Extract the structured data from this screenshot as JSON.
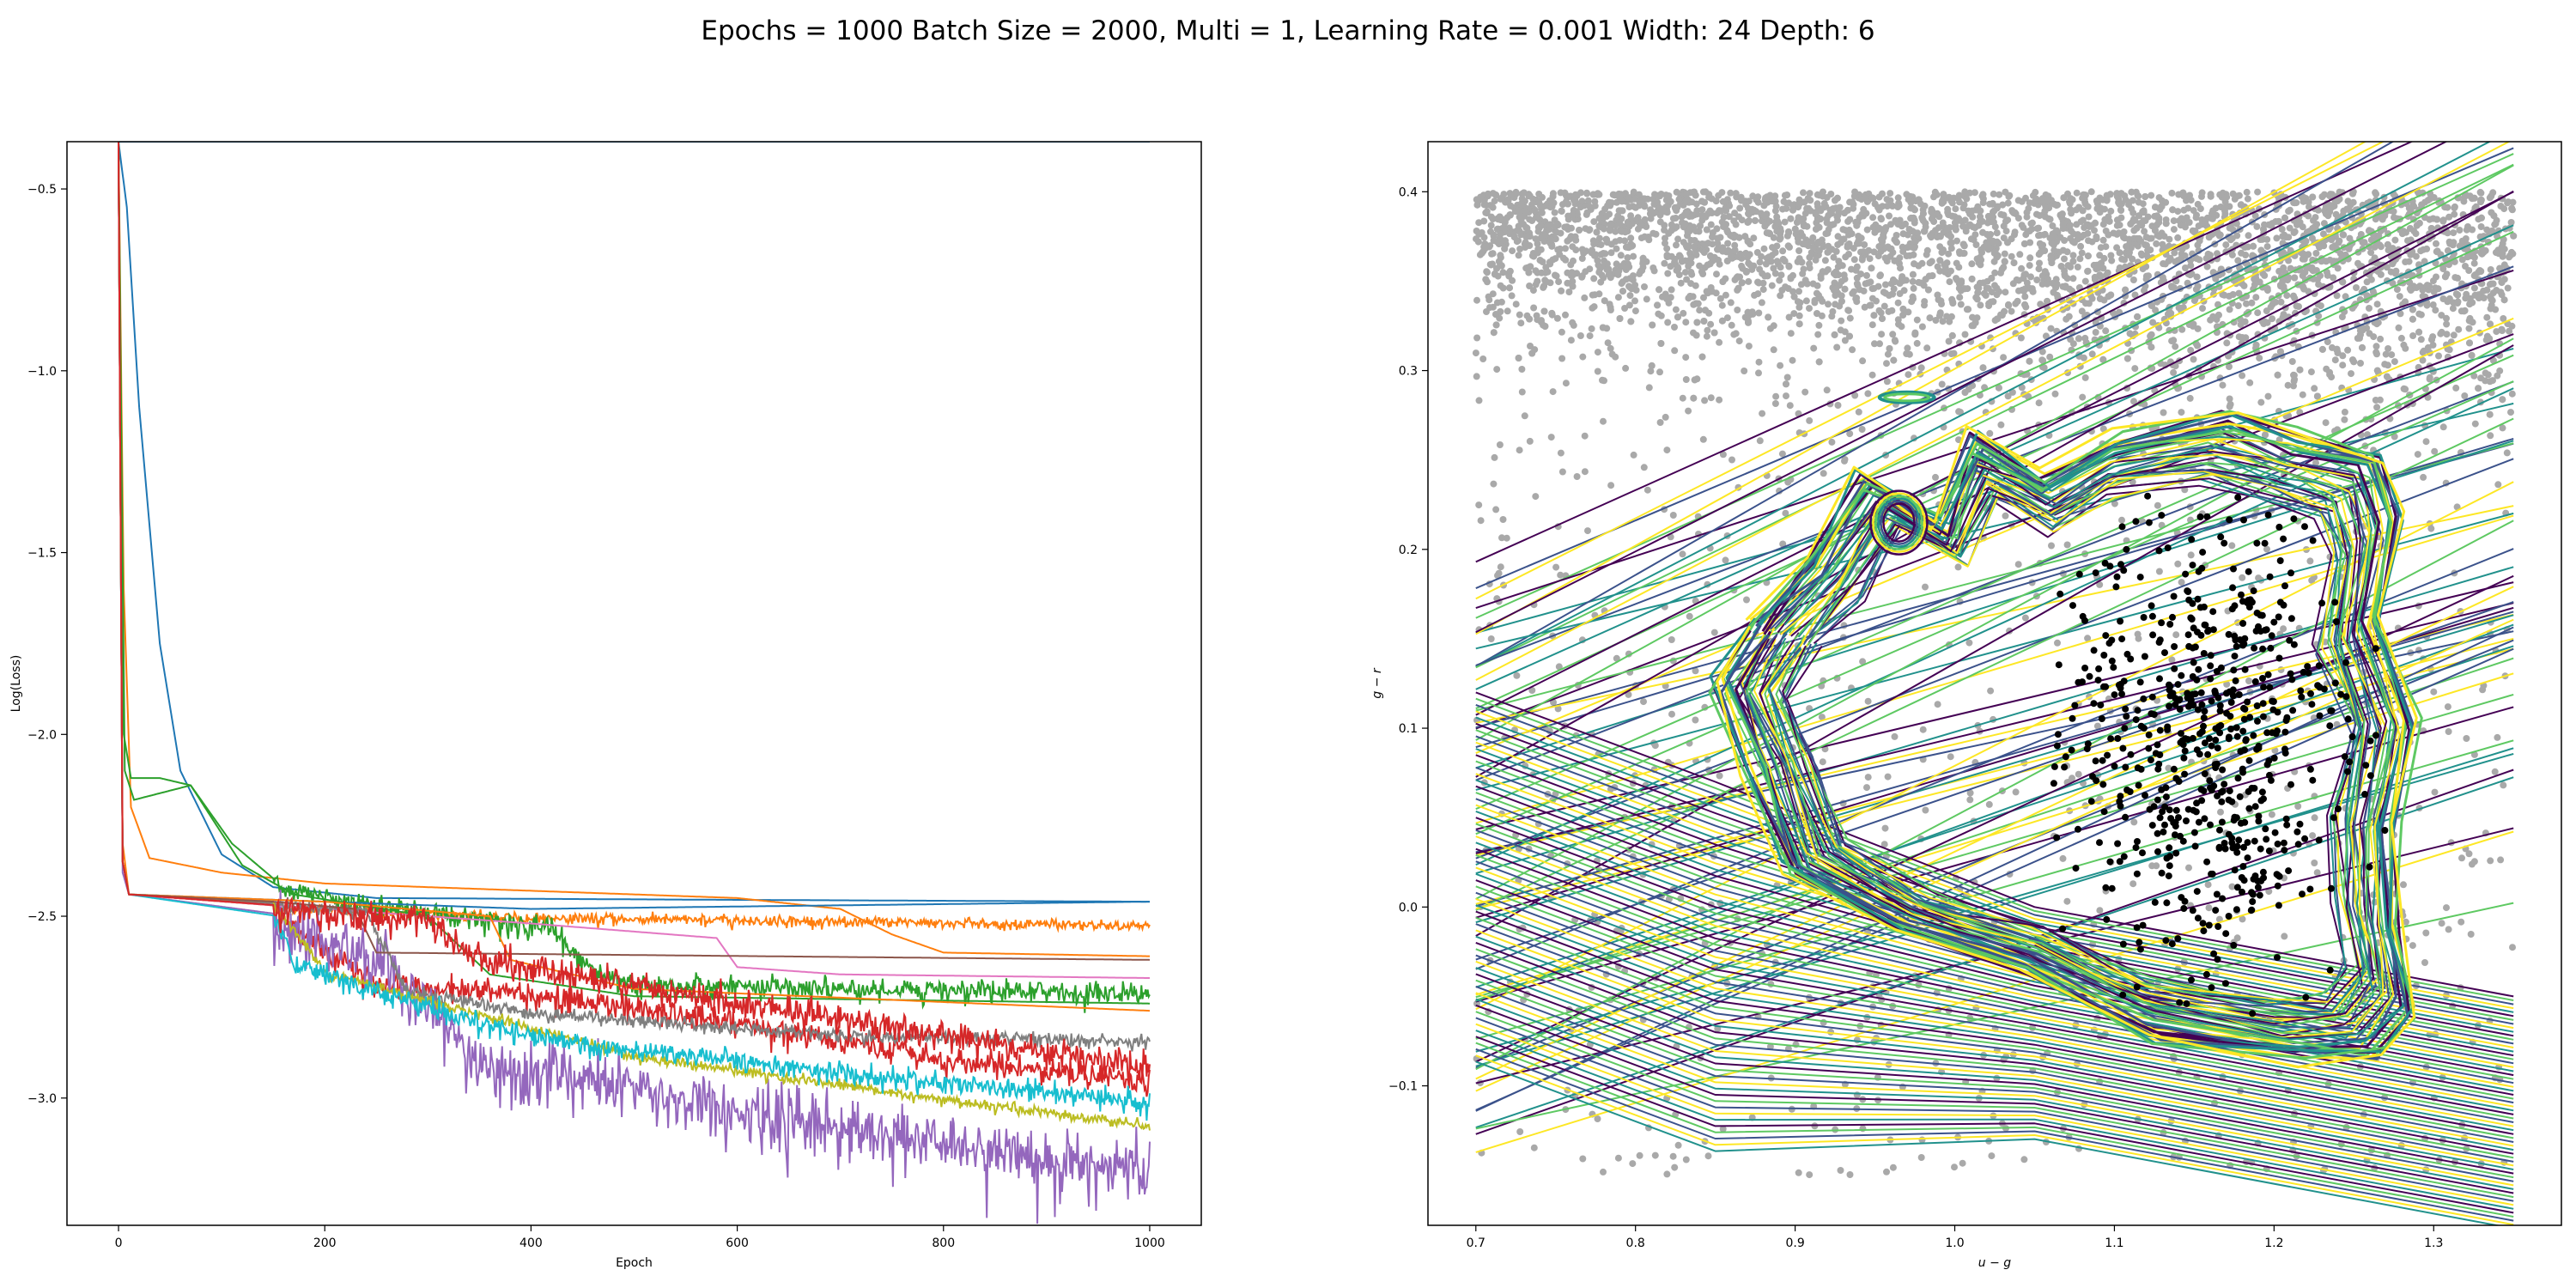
{
  "title": "Epochs = 1000 Batch Size = 2000, Multi = 1, Learning Rate = 0.001 Width: 24 Depth: 6",
  "chart_data": [
    {
      "type": "line",
      "xlabel": "Epoch",
      "ylabel": "Log(Loss)",
      "xlim": [
        -50,
        1050
      ],
      "ylim": [
        -3.35,
        -0.37
      ],
      "xticks": [
        0,
        200,
        400,
        600,
        800,
        1000
      ],
      "yticks": [
        -3.0,
        -2.5,
        -2.0,
        -1.5,
        -1.0,
        -0.5
      ],
      "grid": false,
      "series": [
        {
          "color": "#1f77b4",
          "values": [
            [
              0,
              -0.37
            ],
            [
              1000,
              -0.37
            ]
          ]
        },
        {
          "color": "#1f77b4",
          "values": [
            [
              0,
              -0.37
            ],
            [
              8,
              -0.55
            ],
            [
              20,
              -1.1
            ],
            [
              40,
              -1.75
            ],
            [
              60,
              -2.1
            ],
            [
              100,
              -2.33
            ],
            [
              150,
              -2.42
            ],
            [
              250,
              -2.45
            ],
            [
              600,
              -2.455
            ],
            [
              1000,
              -2.46
            ]
          ]
        },
        {
          "color": "#ff7f0e",
          "values": [
            [
              0,
              -0.37
            ],
            [
              5,
              -1.6
            ],
            [
              12,
              -2.2
            ],
            [
              30,
              -2.34
            ],
            [
              100,
              -2.38
            ],
            [
              200,
              -2.41
            ],
            [
              600,
              -2.45
            ],
            [
              700,
              -2.48
            ],
            [
              750,
              -2.55
            ],
            [
              800,
              -2.6
            ],
            [
              1000,
              -2.61
            ]
          ]
        },
        {
          "color": "#ff7f0e",
          "values": [
            [
              0,
              -0.37
            ],
            [
              4,
              -2.3
            ],
            [
              10,
              -2.44
            ],
            [
              150,
              -2.47
            ],
            [
              400,
              -2.5
            ],
            [
              700,
              -2.51
            ],
            [
              1000,
              -2.52
            ]
          ],
          "noise": 0.012
        },
        {
          "color": "#2ca02c",
          "values": [
            [
              0,
              -0.37
            ],
            [
              5,
              -2.0
            ],
            [
              12,
              -2.12
            ],
            [
              40,
              -2.12
            ],
            [
              70,
              -2.14
            ],
            [
              110,
              -2.3
            ],
            [
              160,
              -2.42
            ],
            [
              350,
              -2.5
            ],
            [
              420,
              -2.52
            ],
            [
              450,
              -2.62
            ],
            [
              500,
              -2.68
            ],
            [
              1000,
              -2.7
            ]
          ],
          "noise": 0.025
        },
        {
          "color": "#d62728",
          "values": [
            [
              0,
              -0.37
            ],
            [
              4,
              -2.35
            ],
            [
              10,
              -2.44
            ],
            [
              150,
              -2.47
            ],
            [
              200,
              -2.58
            ],
            [
              250,
              -2.67
            ],
            [
              400,
              -2.7
            ],
            [
              600,
              -2.78
            ],
            [
              800,
              -2.88
            ],
            [
              1000,
              -2.94
            ]
          ],
          "noise": 0.03
        },
        {
          "color": "#9467bd",
          "values": [
            [
              0,
              -0.37
            ],
            [
              4,
              -2.38
            ],
            [
              10,
              -2.44
            ],
            [
              170,
              -2.5
            ],
            [
              260,
              -2.6
            ],
            [
              320,
              -2.78
            ],
            [
              350,
              -2.88
            ],
            [
              500,
              -2.95
            ],
            [
              700,
              -3.05
            ],
            [
              850,
              -3.12
            ],
            [
              1000,
              -3.17
            ]
          ],
          "noise": 0.07
        },
        {
          "color": "#e377c2",
          "values": [
            [
              0,
              -0.37
            ],
            [
              4,
              -2.35
            ],
            [
              10,
              -2.44
            ],
            [
              200,
              -2.48
            ],
            [
              400,
              -2.52
            ],
            [
              580,
              -2.56
            ],
            [
              600,
              -2.64
            ],
            [
              700,
              -2.66
            ],
            [
              1000,
              -2.67
            ]
          ]
        },
        {
          "color": "#7f7f7f",
          "values": [
            [
              0,
              -0.37
            ],
            [
              4,
              -2.35
            ],
            [
              10,
              -2.44
            ],
            [
              240,
              -2.48
            ],
            [
              280,
              -2.7
            ],
            [
              400,
              -2.76
            ],
            [
              700,
              -2.82
            ],
            [
              1000,
              -2.84
            ]
          ],
          "noise": 0.015
        },
        {
          "color": "#bcbd22",
          "values": [
            [
              0,
              -0.37
            ],
            [
              4,
              -2.35
            ],
            [
              10,
              -2.44
            ],
            [
              150,
              -2.46
            ],
            [
              175,
              -2.55
            ],
            [
              200,
              -2.65
            ],
            [
              500,
              -2.88
            ],
            [
              800,
              -3.0
            ],
            [
              1000,
              -3.07
            ]
          ],
          "noise": 0.012
        },
        {
          "color": "#17becf",
          "values": [
            [
              0,
              -0.37
            ],
            [
              4,
              -2.35
            ],
            [
              10,
              -2.44
            ],
            [
              155,
              -2.5
            ],
            [
              170,
              -2.62
            ],
            [
              250,
              -2.7
            ],
            [
              400,
              -2.82
            ],
            [
              700,
              -2.92
            ],
            [
              1000,
              -3.0
            ]
          ],
          "noise": 0.025
        },
        {
          "color": "#1f77b4",
          "values": [
            [
              0,
              -0.37
            ],
            [
              4,
              -2.35
            ],
            [
              10,
              -2.44
            ],
            [
              200,
              -2.46
            ],
            [
              400,
              -2.48
            ],
            [
              1000,
              -2.46
            ]
          ]
        },
        {
          "color": "#2ca02c",
          "values": [
            [
              0,
              -0.37
            ],
            [
              6,
              -2.1
            ],
            [
              15,
              -2.18
            ],
            [
              70,
              -2.14
            ],
            [
              120,
              -2.36
            ],
            [
              170,
              -2.44
            ],
            [
              300,
              -2.5
            ],
            [
              330,
              -2.58
            ],
            [
              360,
              -2.66
            ],
            [
              500,
              -2.72
            ],
            [
              1000,
              -2.74
            ]
          ]
        },
        {
          "color": "#ff7f0e",
          "values": [
            [
              0,
              -0.37
            ],
            [
              4,
              -2.35
            ],
            [
              10,
              -2.44
            ],
            [
              200,
              -2.46
            ],
            [
              360,
              -2.5
            ],
            [
              380,
              -2.62
            ],
            [
              500,
              -2.7
            ],
            [
              1000,
              -2.76
            ]
          ]
        },
        {
          "color": "#8c564b",
          "values": [
            [
              0,
              -0.37
            ],
            [
              4,
              -2.35
            ],
            [
              10,
              -2.44
            ],
            [
              150,
              -2.46
            ],
            [
              230,
              -2.48
            ],
            [
              250,
              -2.6
            ],
            [
              1000,
              -2.62
            ]
          ]
        },
        {
          "color": "#d62728",
          "values": [
            [
              0,
              -0.37
            ],
            [
              4,
              -2.35
            ],
            [
              10,
              -2.44
            ],
            [
              300,
              -2.5
            ],
            [
              350,
              -2.6
            ],
            [
              600,
              -2.72
            ],
            [
              900,
              -2.86
            ],
            [
              1000,
              -2.9
            ]
          ],
          "noise": 0.035
        }
      ]
    },
    {
      "type": "contour",
      "xlabel": "u − g",
      "ylabel": "g − r",
      "xlim": [
        0.67,
        1.38
      ],
      "ylim": [
        -0.178,
        0.428
      ],
      "xticks": [
        0.7,
        0.8,
        0.9,
        1.0,
        1.1,
        1.2,
        1.3
      ],
      "yticks": [
        -0.1,
        0.0,
        0.1,
        0.2,
        0.3,
        0.4
      ],
      "grid": false,
      "background_points": {
        "color": "#a9a9a9",
        "x_range": [
          0.7,
          1.35
        ],
        "y_range": [
          -0.15,
          0.4
        ]
      },
      "class_points": {
        "color": "#000000",
        "x_range": [
          1.06,
          1.26
        ],
        "y_range": [
          -0.06,
          0.23
        ]
      },
      "colormap": [
        "#440154",
        "#3b528b",
        "#21918c",
        "#5ec962",
        "#fde725"
      ],
      "contour_colors": [
        "#440154",
        "#3b528b",
        "#21918c",
        "#5ec962",
        "#fde725"
      ]
    }
  ]
}
